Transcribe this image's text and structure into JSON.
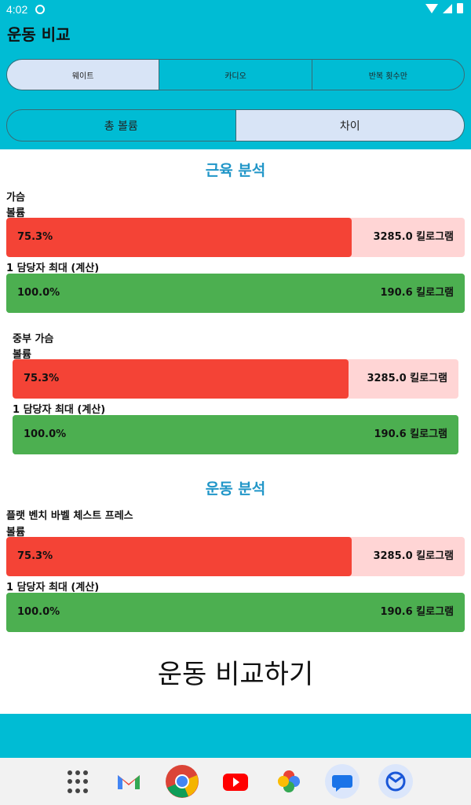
{
  "status": {
    "time": "4:02"
  },
  "app": {
    "title": "운동 비교"
  },
  "tabs_top": [
    "웨이트",
    "카디오",
    "반복 횟수만"
  ],
  "tabs_mode": [
    "총 볼륨",
    "차이"
  ],
  "sections": {
    "muscle": "근육 분석",
    "exercise": "운동 분석"
  },
  "groups": [
    {
      "name": "가슴",
      "metric1_label": "볼륨",
      "metric1_pct": "75.3%",
      "metric1_fraction": 0.753,
      "metric1_value": "3285.0 킬로그램",
      "metric2_label": "1 담당자 최대 (계산)",
      "metric2_pct": "100.0%",
      "metric2_fraction": 1.0,
      "metric2_value": "190.6 킬로그램"
    },
    {
      "name": "중부 가슴",
      "metric1_label": "볼륨",
      "metric1_pct": "75.3%",
      "metric1_fraction": 0.753,
      "metric1_value": "3285.0 킬로그램",
      "metric2_label": "1 담당자 최대 (계산)",
      "metric2_pct": "100.0%",
      "metric2_fraction": 1.0,
      "metric2_value": "190.6 킬로그램"
    },
    {
      "name": "플랫 벤치 바벨 체스트 프레스",
      "metric1_label": "볼륨",
      "metric1_pct": "75.3%",
      "metric1_fraction": 0.753,
      "metric1_value": "3285.0 킬로그램",
      "metric2_label": "1 담당자 최대 (계산)",
      "metric2_pct": "100.0%",
      "metric2_fraction": 1.0,
      "metric2_value": "190.6 킬로그램"
    }
  ],
  "compare_button": "운동 비교하기",
  "colors": {
    "accent": "#00bcd4",
    "decrease": "#f44336",
    "decrease_bg": "#ffd5d5",
    "increase": "#4caf50",
    "section_title": "#2196c8"
  },
  "dock": [
    "apps-grid-icon",
    "gmail-icon",
    "chrome-icon",
    "youtube-icon",
    "photos-icon",
    "messages-icon",
    "sync-icon"
  ]
}
